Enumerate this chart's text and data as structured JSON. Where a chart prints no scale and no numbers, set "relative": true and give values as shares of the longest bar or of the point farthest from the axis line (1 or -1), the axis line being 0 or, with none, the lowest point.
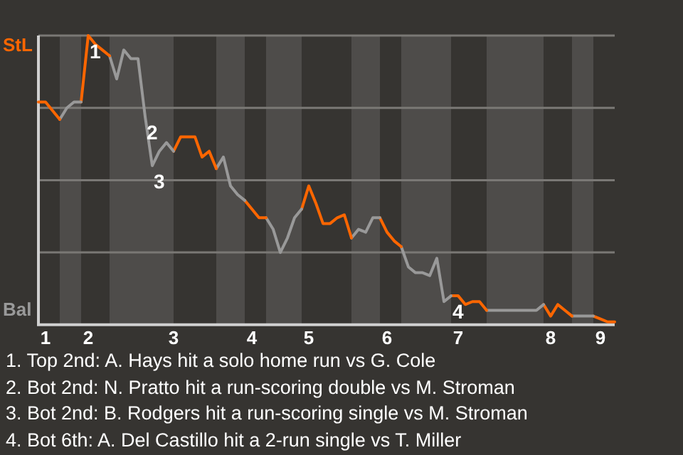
{
  "chart_data": {
    "type": "line",
    "relative": true,
    "categories": [
      null,
      "1",
      null,
      null,
      null,
      null,
      null,
      "2",
      null,
      null,
      null,
      null,
      null,
      null,
      null,
      null,
      null,
      null,
      null,
      "3",
      null,
      null,
      null,
      null,
      null,
      null,
      null,
      null,
      null,
      null,
      "4",
      null,
      null,
      null,
      null,
      null,
      null,
      null,
      "5",
      null,
      null,
      null,
      null,
      null,
      null,
      null,
      null,
      null,
      null,
      "6",
      null,
      null,
      null,
      null,
      null,
      null,
      null,
      null,
      null,
      "7",
      null,
      null,
      null,
      null,
      null,
      null,
      null,
      null,
      null,
      null,
      null,
      null,
      "8",
      null,
      null,
      null,
      null,
      null,
      null,
      "9",
      null,
      null
    ],
    "grid": "y",
    "legend": false,
    "marker": "none",
    "line_style": "solid",
    "series": [
      {
        "color": "#ff6600",
        "values": [
          0.77,
          0.77,
          0.74,
          0.71,
          null,
          null,
          null,
          null,
          null,
          null,
          null,
          null,
          null,
          null,
          null,
          null,
          null,
          null,
          null,
          null,
          null,
          null,
          null,
          null,
          null,
          null,
          null,
          null,
          null,
          null,
          null,
          null,
          null,
          null,
          null,
          null,
          null,
          null,
          null,
          null,
          null,
          null,
          null,
          null,
          null,
          null,
          null,
          null,
          null,
          null,
          null,
          null,
          null,
          null,
          null,
          null,
          null,
          null,
          null,
          null,
          null,
          null,
          null,
          null,
          null,
          null,
          null,
          null,
          null,
          null,
          null,
          null,
          null,
          null,
          null,
          null,
          null,
          null,
          null,
          null,
          null,
          null
        ]
      },
      {
        "color": "#999999",
        "values": [
          null,
          null,
          null,
          0.71,
          0.75,
          0.77,
          0.77,
          null,
          null,
          null,
          null,
          null,
          null,
          null,
          null,
          null,
          null,
          null,
          null,
          null,
          null,
          null,
          null,
          null,
          null,
          null,
          null,
          null,
          null,
          null,
          null,
          null,
          null,
          null,
          null,
          null,
          null,
          null,
          null,
          null,
          null,
          null,
          null,
          null,
          null,
          null,
          null,
          null,
          null,
          null,
          null,
          null,
          null,
          null,
          null,
          null,
          null,
          null,
          null,
          null,
          null,
          null,
          null,
          null,
          null,
          null,
          null,
          null,
          null,
          null,
          null,
          null,
          null,
          null,
          null,
          null,
          null,
          null,
          null,
          null,
          null,
          null
        ]
      },
      {
        "color": "#ff6600",
        "values": [
          null,
          null,
          null,
          null,
          null,
          null,
          0.77,
          1,
          0.97,
          0.95,
          0.93,
          null,
          null,
          null,
          null,
          null,
          null,
          null,
          null,
          null,
          null,
          null,
          null,
          null,
          null,
          null,
          null,
          null,
          null,
          null,
          null,
          null,
          null,
          null,
          null,
          null,
          null,
          null,
          null,
          null,
          null,
          null,
          null,
          null,
          null,
          null,
          null,
          null,
          null,
          null,
          null,
          null,
          null,
          null,
          null,
          null,
          null,
          null,
          null,
          null,
          null,
          null,
          null,
          null,
          null,
          null,
          null,
          null,
          null,
          null,
          null,
          null,
          null,
          null,
          null,
          null,
          null,
          null,
          null,
          null,
          null,
          null
        ]
      },
      {
        "color": "#999999",
        "values": [
          null,
          null,
          null,
          null,
          null,
          null,
          null,
          null,
          null,
          null,
          0.93,
          0.85,
          0.95,
          0.92,
          0.92,
          0.72,
          0.55,
          0.6,
          0.63,
          0.6,
          null,
          null,
          null,
          null,
          null,
          null,
          null,
          null,
          null,
          null,
          null,
          null,
          null,
          null,
          null,
          null,
          null,
          null,
          null,
          null,
          null,
          null,
          null,
          null,
          null,
          null,
          null,
          null,
          null,
          null,
          null,
          null,
          null,
          null,
          null,
          null,
          null,
          null,
          null,
          null,
          null,
          null,
          null,
          null,
          null,
          null,
          null,
          null,
          null,
          null,
          null,
          null,
          null,
          null,
          null,
          null,
          null,
          null,
          null,
          null,
          null,
          null
        ]
      },
      {
        "color": "#ff6600",
        "values": [
          null,
          null,
          null,
          null,
          null,
          null,
          null,
          null,
          null,
          null,
          null,
          null,
          null,
          null,
          null,
          null,
          null,
          null,
          null,
          0.6,
          0.65,
          0.65,
          0.65,
          0.58,
          0.6,
          0.54,
          null,
          null,
          null,
          null,
          null,
          null,
          null,
          null,
          null,
          null,
          null,
          null,
          null,
          null,
          null,
          null,
          null,
          null,
          null,
          null,
          null,
          null,
          null,
          null,
          null,
          null,
          null,
          null,
          null,
          null,
          null,
          null,
          null,
          null,
          null,
          null,
          null,
          null,
          null,
          null,
          null,
          null,
          null,
          null,
          null,
          null,
          null,
          null,
          null,
          null,
          null,
          null,
          null,
          null,
          null,
          null
        ]
      },
      {
        "color": "#999999",
        "values": [
          null,
          null,
          null,
          null,
          null,
          null,
          null,
          null,
          null,
          null,
          null,
          null,
          null,
          null,
          null,
          null,
          null,
          null,
          null,
          null,
          null,
          null,
          null,
          null,
          null,
          0.54,
          0.58,
          0.48,
          0.45,
          0.43,
          null,
          null,
          null,
          null,
          null,
          null,
          null,
          null,
          null,
          null,
          null,
          null,
          null,
          null,
          null,
          null,
          null,
          null,
          null,
          null,
          null,
          null,
          null,
          null,
          null,
          null,
          null,
          null,
          null,
          null,
          null,
          null,
          null,
          null,
          null,
          null,
          null,
          null,
          null,
          null,
          null,
          null,
          null,
          null,
          null,
          null,
          null,
          null,
          null,
          null,
          null,
          null
        ]
      },
      {
        "color": "#ff6600",
        "values": [
          null,
          null,
          null,
          null,
          null,
          null,
          null,
          null,
          null,
          null,
          null,
          null,
          null,
          null,
          null,
          null,
          null,
          null,
          null,
          null,
          null,
          null,
          null,
          null,
          null,
          null,
          null,
          null,
          null,
          0.43,
          0.4,
          0.37,
          0.37,
          null,
          null,
          null,
          null,
          null,
          null,
          null,
          null,
          null,
          null,
          null,
          null,
          null,
          null,
          null,
          null,
          null,
          null,
          null,
          null,
          null,
          null,
          null,
          null,
          null,
          null,
          null,
          null,
          null,
          null,
          null,
          null,
          null,
          null,
          null,
          null,
          null,
          null,
          null,
          null,
          null,
          null,
          null,
          null,
          null,
          null,
          null,
          null,
          null
        ]
      },
      {
        "color": "#999999",
        "values": [
          null,
          null,
          null,
          null,
          null,
          null,
          null,
          null,
          null,
          null,
          null,
          null,
          null,
          null,
          null,
          null,
          null,
          null,
          null,
          null,
          null,
          null,
          null,
          null,
          null,
          null,
          null,
          null,
          null,
          null,
          null,
          null,
          0.37,
          0.33,
          0.25,
          0.3,
          0.37,
          0.4,
          null,
          null,
          null,
          null,
          null,
          null,
          null,
          null,
          null,
          null,
          null,
          null,
          null,
          null,
          null,
          null,
          null,
          null,
          null,
          null,
          null,
          null,
          null,
          null,
          null,
          null,
          null,
          null,
          null,
          null,
          null,
          null,
          null,
          null,
          null,
          null,
          null,
          null,
          null,
          null,
          null,
          null,
          null,
          null
        ]
      },
      {
        "color": "#ff6600",
        "values": [
          null,
          null,
          null,
          null,
          null,
          null,
          null,
          null,
          null,
          null,
          null,
          null,
          null,
          null,
          null,
          null,
          null,
          null,
          null,
          null,
          null,
          null,
          null,
          null,
          null,
          null,
          null,
          null,
          null,
          null,
          null,
          null,
          null,
          null,
          null,
          null,
          null,
          0.4,
          0.48,
          0.42,
          0.35,
          0.35,
          0.37,
          0.38,
          0.3,
          null,
          null,
          null,
          null,
          null,
          null,
          null,
          null,
          null,
          null,
          null,
          null,
          null,
          null,
          null,
          null,
          null,
          null,
          null,
          null,
          null,
          null,
          null,
          null,
          null,
          null,
          null,
          null,
          null,
          null,
          null,
          null,
          null,
          null,
          null,
          null,
          null
        ]
      },
      {
        "color": "#999999",
        "values": [
          null,
          null,
          null,
          null,
          null,
          null,
          null,
          null,
          null,
          null,
          null,
          null,
          null,
          null,
          null,
          null,
          null,
          null,
          null,
          null,
          null,
          null,
          null,
          null,
          null,
          null,
          null,
          null,
          null,
          null,
          null,
          null,
          null,
          null,
          null,
          null,
          null,
          null,
          null,
          null,
          null,
          null,
          null,
          null,
          0.3,
          0.33,
          0.32,
          0.37,
          0.37,
          null,
          null,
          null,
          null,
          null,
          null,
          null,
          null,
          null,
          null,
          null,
          null,
          null,
          null,
          null,
          null,
          null,
          null,
          null,
          null,
          null,
          null,
          null,
          null,
          null,
          null,
          null,
          null,
          null,
          null,
          null,
          null,
          null
        ]
      },
      {
        "color": "#ff6600",
        "values": [
          null,
          null,
          null,
          null,
          null,
          null,
          null,
          null,
          null,
          null,
          null,
          null,
          null,
          null,
          null,
          null,
          null,
          null,
          null,
          null,
          null,
          null,
          null,
          null,
          null,
          null,
          null,
          null,
          null,
          null,
          null,
          null,
          null,
          null,
          null,
          null,
          null,
          null,
          null,
          null,
          null,
          null,
          null,
          null,
          null,
          null,
          null,
          null,
          0.37,
          0.32,
          0.29,
          0.27,
          null,
          null,
          null,
          null,
          null,
          null,
          null,
          null,
          null,
          null,
          null,
          null,
          null,
          null,
          null,
          null,
          null,
          null,
          null,
          null,
          null,
          null,
          null,
          null,
          null,
          null,
          null,
          null,
          null,
          null
        ]
      },
      {
        "color": "#999999",
        "values": [
          null,
          null,
          null,
          null,
          null,
          null,
          null,
          null,
          null,
          null,
          null,
          null,
          null,
          null,
          null,
          null,
          null,
          null,
          null,
          null,
          null,
          null,
          null,
          null,
          null,
          null,
          null,
          null,
          null,
          null,
          null,
          null,
          null,
          null,
          null,
          null,
          null,
          null,
          null,
          null,
          null,
          null,
          null,
          null,
          null,
          null,
          null,
          null,
          null,
          null,
          null,
          0.27,
          0.2,
          0.18,
          0.18,
          0.17,
          0.23,
          0.08,
          0.1,
          null,
          null,
          null,
          null,
          null,
          null,
          null,
          null,
          null,
          null,
          null,
          null,
          null,
          null,
          null,
          null,
          null,
          null,
          null,
          null,
          null,
          null,
          null
        ]
      },
      {
        "color": "#ff6600",
        "values": [
          null,
          null,
          null,
          null,
          null,
          null,
          null,
          null,
          null,
          null,
          null,
          null,
          null,
          null,
          null,
          null,
          null,
          null,
          null,
          null,
          null,
          null,
          null,
          null,
          null,
          null,
          null,
          null,
          null,
          null,
          null,
          null,
          null,
          null,
          null,
          null,
          null,
          null,
          null,
          null,
          null,
          null,
          null,
          null,
          null,
          null,
          null,
          null,
          null,
          null,
          null,
          null,
          null,
          null,
          null,
          null,
          null,
          null,
          0.1,
          0.1,
          0.07,
          0.08,
          0.08,
          0.05,
          null,
          null,
          null,
          null,
          null,
          null,
          null,
          null,
          null,
          null,
          null,
          null,
          null,
          null,
          null,
          null,
          null,
          null
        ]
      },
      {
        "color": "#999999",
        "values": [
          null,
          null,
          null,
          null,
          null,
          null,
          null,
          null,
          null,
          null,
          null,
          null,
          null,
          null,
          null,
          null,
          null,
          null,
          null,
          null,
          null,
          null,
          null,
          null,
          null,
          null,
          null,
          null,
          null,
          null,
          null,
          null,
          null,
          null,
          null,
          null,
          null,
          null,
          null,
          null,
          null,
          null,
          null,
          null,
          null,
          null,
          null,
          null,
          null,
          null,
          null,
          null,
          null,
          null,
          null,
          null,
          null,
          null,
          null,
          null,
          null,
          null,
          null,
          0.05,
          0.05,
          0.05,
          0.05,
          0.05,
          0.05,
          0.05,
          0.05,
          0.07,
          null,
          null,
          null,
          null,
          null,
          null,
          null,
          null,
          null,
          null
        ]
      },
      {
        "color": "#ff6600",
        "values": [
          null,
          null,
          null,
          null,
          null,
          null,
          null,
          null,
          null,
          null,
          null,
          null,
          null,
          null,
          null,
          null,
          null,
          null,
          null,
          null,
          null,
          null,
          null,
          null,
          null,
          null,
          null,
          null,
          null,
          null,
          null,
          null,
          null,
          null,
          null,
          null,
          null,
          null,
          null,
          null,
          null,
          null,
          null,
          null,
          null,
          null,
          null,
          null,
          null,
          null,
          null,
          null,
          null,
          null,
          null,
          null,
          null,
          null,
          null,
          null,
          null,
          null,
          null,
          null,
          null,
          null,
          null,
          null,
          null,
          null,
          null,
          0.07,
          0.03,
          0.07,
          0.05,
          0.03,
          null,
          null,
          null,
          null,
          null,
          null
        ]
      },
      {
        "color": "#999999",
        "values": [
          null,
          null,
          null,
          null,
          null,
          null,
          null,
          null,
          null,
          null,
          null,
          null,
          null,
          null,
          null,
          null,
          null,
          null,
          null,
          null,
          null,
          null,
          null,
          null,
          null,
          null,
          null,
          null,
          null,
          null,
          null,
          null,
          null,
          null,
          null,
          null,
          null,
          null,
          null,
          null,
          null,
          null,
          null,
          null,
          null,
          null,
          null,
          null,
          null,
          null,
          null,
          null,
          null,
          null,
          null,
          null,
          null,
          null,
          null,
          null,
          null,
          null,
          null,
          null,
          null,
          null,
          null,
          null,
          null,
          null,
          null,
          null,
          null,
          null,
          null,
          0.03,
          0.03,
          0.03,
          0.03,
          null,
          null,
          null
        ]
      },
      {
        "color": "#ff6600",
        "values": [
          null,
          null,
          null,
          null,
          null,
          null,
          null,
          null,
          null,
          null,
          null,
          null,
          null,
          null,
          null,
          null,
          null,
          null,
          null,
          null,
          null,
          null,
          null,
          null,
          null,
          null,
          null,
          null,
          null,
          null,
          null,
          null,
          null,
          null,
          null,
          null,
          null,
          null,
          null,
          null,
          null,
          null,
          null,
          null,
          null,
          null,
          null,
          null,
          null,
          null,
          null,
          null,
          null,
          null,
          null,
          null,
          null,
          null,
          null,
          null,
          null,
          null,
          null,
          null,
          null,
          null,
          null,
          null,
          null,
          null,
          null,
          null,
          null,
          null,
          null,
          null,
          null,
          null,
          0.03,
          0.02,
          0.01,
          0.01
        ]
      }
    ],
    "annotations": [
      "StL",
      "Bal",
      {
        "text": "1",
        "x": "2",
        "y": 1
      },
      {
        "text": "2",
        "y": 0.72
      },
      {
        "text": "3",
        "y": 0.55
      },
      {
        "text": "4",
        "y": 0.1
      },
      "1. Top 2nd: A. Hays hit a solo home run vs G. Cole",
      "2. Bot 2nd: N. Pratto hit a run-scoring double vs M. Stroman",
      "3. Bot 2nd: B. Rodgers hit a run-scoring single vs M. Stroman",
      "4. Bot 6th: A. Del Castillo hit a 2-run single vs T. Miller"
    ]
  }
}
